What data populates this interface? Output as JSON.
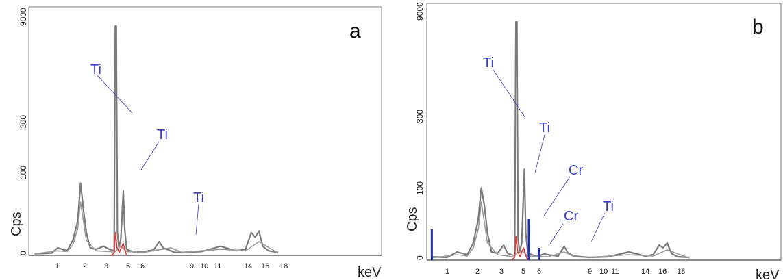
{
  "chart_data": [
    {
      "type": "line",
      "panel_label": "a",
      "xlabel": "keV",
      "ylabel": "Cps",
      "x_tick_labels": [
        "1",
        "2",
        "3",
        "5",
        "6",
        "9",
        "10",
        "11",
        "14",
        "16",
        "18"
      ],
      "y_tick_labels": [
        "0",
        "100",
        "300",
        "9000"
      ],
      "scale": "nonlinear",
      "series": [
        {
          "color": "#7a7a7a",
          "x": [
            0.3,
            1.2,
            1.5,
            2.0,
            2.3,
            2.55,
            2.7,
            2.85,
            3.0,
            3.2,
            3.5,
            3.9,
            4.2,
            4.45,
            4.51,
            4.56,
            4.62,
            4.7,
            4.8,
            4.93,
            5.0,
            5.1,
            5.3,
            5.5,
            6.0,
            6.5,
            6.8,
            7.0,
            7.4,
            7.6,
            8.0,
            9.0,
            10.0,
            10.8,
            11.3,
            11.6,
            11.8,
            12.0,
            12.2,
            12.5,
            13.0
          ],
          "values": [
            2,
            3,
            10,
            6,
            20,
            45,
            95,
            60,
            30,
            10,
            8,
            12,
            8,
            6,
            9800,
            9800,
            30,
            10,
            22,
            85,
            35,
            8,
            6,
            4,
            5,
            7,
            18,
            10,
            6,
            4,
            4,
            5,
            12,
            6,
            8,
            30,
            24,
            32,
            12,
            6,
            4
          ]
        },
        {
          "color": "#9a9a9a",
          "x": [
            0.3,
            1.5,
            2.0,
            2.3,
            2.55,
            2.7,
            2.85,
            3.0,
            3.5,
            4.2,
            4.45,
            4.8,
            5.1,
            6.0,
            7.4,
            8.0,
            10.0,
            11.3,
            12.0,
            13.0
          ],
          "values": [
            2,
            6,
            5,
            14,
            35,
            70,
            45,
            20,
            6,
            5,
            4,
            12,
            5,
            4,
            10,
            4,
            8,
            6,
            18,
            3
          ]
        },
        {
          "color": "#e03a3a",
          "x": [
            4.3,
            4.45,
            4.52,
            4.6,
            4.72,
            4.82,
            4.92,
            5.0,
            5.1
          ],
          "values": [
            0,
            3,
            30,
            10,
            4,
            10,
            16,
            8,
            0
          ]
        }
      ],
      "annotations": [
        "Ti",
        "Ti",
        "Ti"
      ]
    },
    {
      "type": "line",
      "panel_label": "b",
      "xlabel": "keV",
      "ylabel": "Cps",
      "x_tick_labels": [
        "1",
        "2",
        "3",
        "5",
        "6",
        "9",
        "10",
        "11",
        "14",
        "16",
        "18"
      ],
      "y_tick_labels": [
        "0",
        "100",
        "300",
        "9000"
      ],
      "scale": "nonlinear",
      "series": [
        {
          "color": "#7a7a7a",
          "x": [
            0.2,
            1.0,
            1.5,
            2.0,
            2.3,
            2.55,
            2.7,
            2.85,
            3.0,
            3.2,
            3.5,
            3.8,
            4.0,
            4.2,
            4.35,
            4.41,
            4.46,
            4.52,
            4.6,
            4.7,
            4.83,
            4.9,
            5.0,
            5.3,
            5.5,
            5.8,
            6.2,
            6.5,
            6.8,
            7.0,
            7.3,
            8.0,
            9.0,
            10.0,
            10.8,
            11.2,
            11.5,
            11.7,
            11.9,
            12.1,
            12.4,
            13.0
          ],
          "values": [
            5,
            4,
            12,
            8,
            25,
            60,
            110,
            80,
            40,
            12,
            10,
            22,
            10,
            8,
            6,
            9800,
            9800,
            30,
            12,
            25,
            160,
            40,
            10,
            7,
            6,
            9,
            7,
            6,
            20,
            10,
            6,
            4,
            5,
            12,
            6,
            8,
            22,
            18,
            25,
            10,
            5,
            4
          ]
        },
        {
          "color": "#9a9a9a",
          "x": [
            0.2,
            1.5,
            2.0,
            2.3,
            2.55,
            2.7,
            2.85,
            3.0,
            3.5,
            4.0,
            4.2,
            4.7,
            5.0,
            6.0,
            6.8,
            7.3,
            8.0,
            10.0,
            11.2,
            11.9,
            13.0
          ],
          "values": [
            3,
            8,
            6,
            18,
            45,
            85,
            55,
            25,
            8,
            6,
            5,
            14,
            6,
            5,
            12,
            5,
            4,
            8,
            6,
            15,
            3
          ]
        },
        {
          "color": "#e03a3a",
          "x": [
            4.2,
            4.35,
            4.42,
            4.5,
            4.62,
            4.7,
            4.8,
            4.88,
            5.0
          ],
          "values": [
            0,
            4,
            35,
            12,
            5,
            12,
            18,
            8,
            0
          ]
        },
        {
          "color": "#1f2db3",
          "type": "bar",
          "x": [
            0.25,
            5.05,
            5.55
          ],
          "values": [
            45,
            60,
            18
          ]
        }
      ],
      "annotations": [
        "Ti",
        "Ti",
        "Cr",
        "Cr",
        "Ti"
      ]
    }
  ]
}
